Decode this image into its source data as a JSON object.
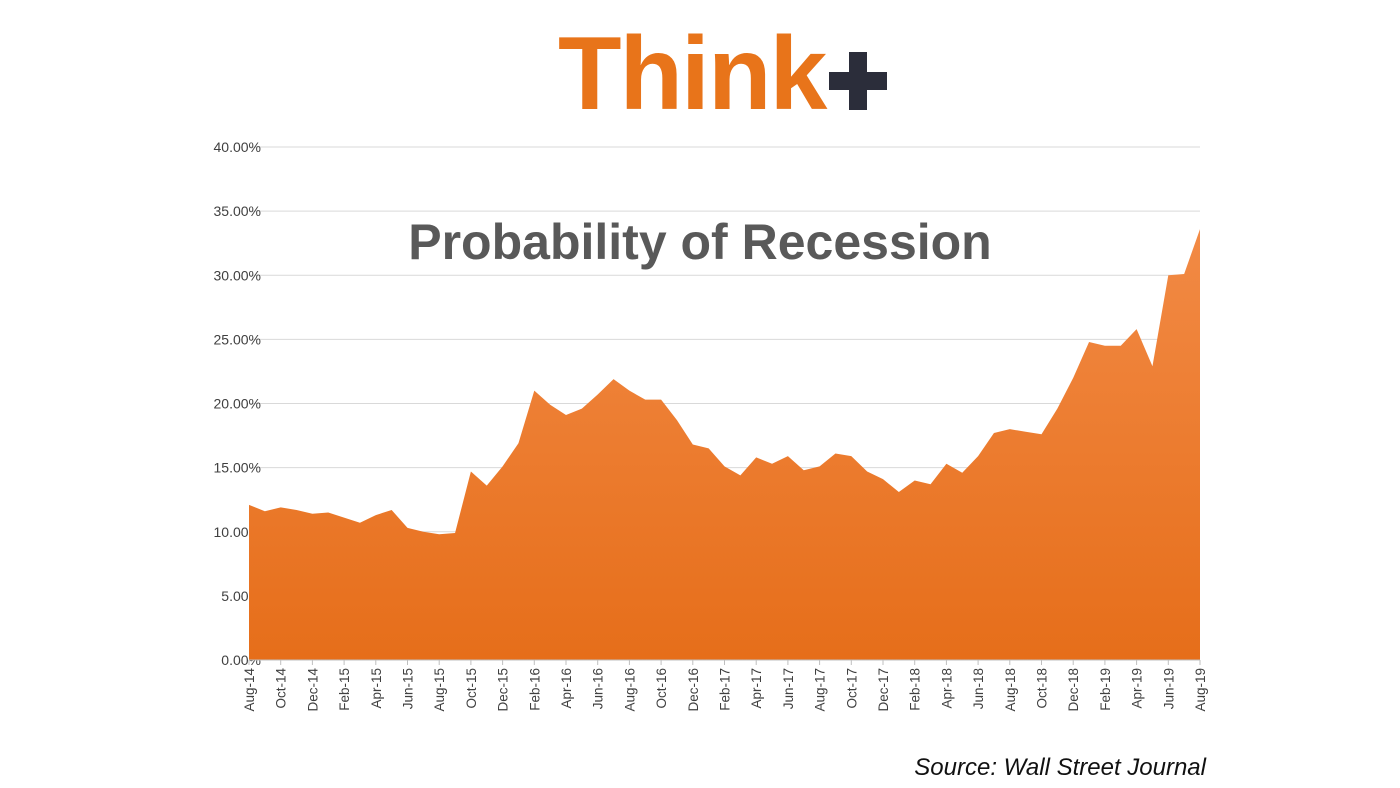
{
  "logo": {
    "word": "Think",
    "mark": "plus-icon"
  },
  "source": "Source: Wall Street Journal",
  "colors": {
    "area_top": "#f28a45",
    "area_bottom": "#e66e1a",
    "logo_orange": "#e8741a",
    "logo_dark": "#2b2d3a",
    "grid": "#d9d9d9"
  },
  "chart_data": {
    "type": "area",
    "title": "Probability of Recession",
    "xlabel": "",
    "ylabel": "",
    "ylim": [
      0,
      40
    ],
    "yticks": [
      "0.00%",
      "5.00%",
      "10.00%",
      "15.00%",
      "20.00%",
      "25.00%",
      "30.00%",
      "35.00%",
      "40.00%"
    ],
    "grid": true,
    "x_tick_labels": [
      "Aug-14",
      "Oct-14",
      "Dec-14",
      "Feb-15",
      "Apr-15",
      "Jun-15",
      "Aug-15",
      "Oct-15",
      "Dec-15",
      "Feb-16",
      "Apr-16",
      "Jun-16",
      "Aug-16",
      "Oct-16",
      "Dec-16",
      "Feb-17",
      "Apr-17",
      "Jun-17",
      "Aug-17",
      "Oct-17",
      "Dec-17",
      "Feb-18",
      "Apr-18",
      "Jun-18",
      "Aug-18",
      "Oct-18",
      "Dec-18",
      "Feb-19",
      "Apr-19",
      "Jun-19",
      "Aug-19"
    ],
    "x": [
      "Aug-14",
      "Sep-14",
      "Oct-14",
      "Nov-14",
      "Dec-14",
      "Jan-15",
      "Feb-15",
      "Mar-15",
      "Apr-15",
      "May-15",
      "Jun-15",
      "Jul-15",
      "Aug-15",
      "Sep-15",
      "Oct-15",
      "Nov-15",
      "Dec-15",
      "Jan-16",
      "Feb-16",
      "Mar-16",
      "Apr-16",
      "May-16",
      "Jun-16",
      "Jul-16",
      "Aug-16",
      "Sep-16",
      "Oct-16",
      "Nov-16",
      "Dec-16",
      "Jan-17",
      "Feb-17",
      "Mar-17",
      "Apr-17",
      "May-17",
      "Jun-17",
      "Jul-17",
      "Aug-17",
      "Sep-17",
      "Oct-17",
      "Nov-17",
      "Dec-17",
      "Jan-18",
      "Feb-18",
      "Mar-18",
      "Apr-18",
      "May-18",
      "Jun-18",
      "Jul-18",
      "Aug-18",
      "Sep-18",
      "Oct-18",
      "Nov-18",
      "Dec-18",
      "Jan-19",
      "Feb-19",
      "Mar-19",
      "Apr-19",
      "May-19",
      "Jun-19",
      "Jul-19",
      "Aug-19"
    ],
    "values": [
      12.1,
      11.6,
      11.9,
      11.7,
      11.4,
      11.5,
      11.1,
      10.7,
      11.3,
      11.7,
      10.3,
      10.0,
      9.8,
      9.9,
      14.7,
      13.6,
      15.1,
      16.9,
      21.0,
      19.9,
      19.1,
      19.6,
      20.7,
      21.9,
      21.0,
      20.3,
      20.3,
      18.7,
      16.8,
      16.5,
      15.1,
      14.4,
      15.8,
      15.3,
      15.9,
      14.8,
      15.1,
      16.1,
      15.9,
      14.7,
      14.1,
      13.1,
      14.0,
      13.7,
      15.3,
      14.6,
      15.9,
      17.7,
      18.0,
      17.8,
      17.6,
      19.6,
      22.0,
      24.8,
      24.5,
      24.5,
      25.8,
      22.9,
      30.0,
      30.1,
      33.6
    ]
  }
}
